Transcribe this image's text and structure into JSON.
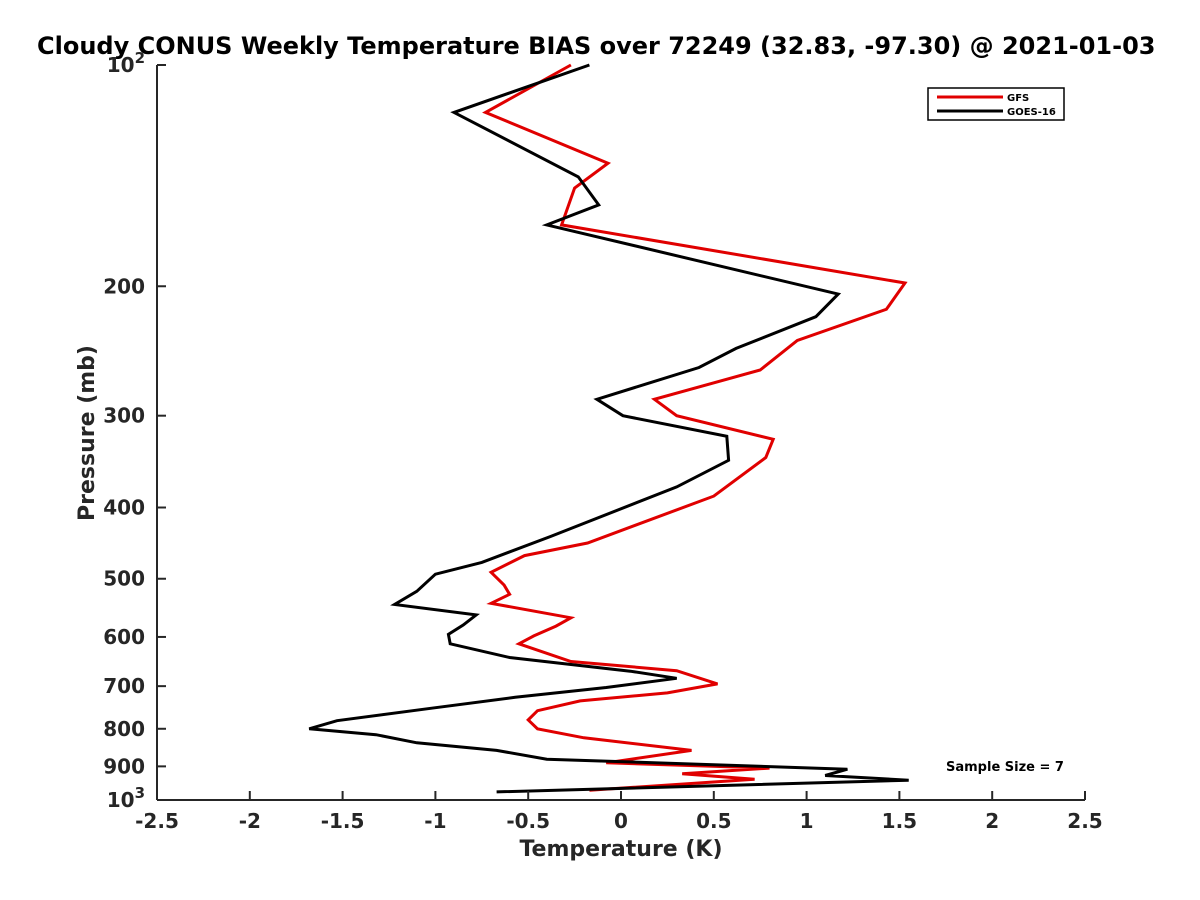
{
  "chart_data": {
    "type": "line",
    "title": "Cloudy CONUS Weekly Temperature BIAS over 72249 (32.83, -97.30) @ 2021-01-03",
    "xlabel": "Temperature (K)",
    "ylabel": "Pressure (mb)",
    "xlim": [
      -2.5,
      2.5
    ],
    "ylim": [
      100,
      1000
    ],
    "y_scale": "log",
    "y_reversed": true,
    "grid": false,
    "legend_position": "top-right",
    "x_ticks": [
      "-2.5",
      "-2",
      "-1.5",
      "-1",
      "-0.5",
      "0",
      "0.5",
      "1",
      "1.5",
      "2",
      "2.5"
    ],
    "y_ticks": [
      {
        "value": 100,
        "base": "10",
        "exp": "2"
      },
      {
        "value": 200,
        "label": "200"
      },
      {
        "value": 300,
        "label": "300"
      },
      {
        "value": 400,
        "label": "400"
      },
      {
        "value": 500,
        "label": "500"
      },
      {
        "value": 600,
        "label": "600"
      },
      {
        "value": 700,
        "label": "700"
      },
      {
        "value": 800,
        "label": "800"
      },
      {
        "value": 900,
        "label": "900"
      },
      {
        "value": 1000,
        "base": "10",
        "exp": "3"
      }
    ],
    "annotation": "Sample Size = 7",
    "series": [
      {
        "name": "GFS",
        "color": "#e00000",
        "points": [
          [
            -0.27,
            100
          ],
          [
            -0.73,
            116
          ],
          [
            -0.07,
            136
          ],
          [
            -0.25,
            147
          ],
          [
            -0.32,
            165
          ],
          [
            1.53,
            198
          ],
          [
            1.43,
            215
          ],
          [
            0.95,
            237
          ],
          [
            0.75,
            260
          ],
          [
            0.18,
            285
          ],
          [
            0.3,
            300
          ],
          [
            0.82,
            323
          ],
          [
            0.78,
            342
          ],
          [
            0.5,
            386
          ],
          [
            -0.18,
            447
          ],
          [
            -0.52,
            465
          ],
          [
            -0.7,
            490
          ],
          [
            -0.63,
            510
          ],
          [
            -0.6,
            525
          ],
          [
            -0.7,
            540
          ],
          [
            -0.27,
            565
          ],
          [
            -0.35,
            580
          ],
          [
            -0.47,
            598
          ],
          [
            -0.55,
            613
          ],
          [
            -0.27,
            648
          ],
          [
            0.3,
            667
          ],
          [
            0.52,
            695
          ],
          [
            0.25,
            715
          ],
          [
            -0.22,
            733
          ],
          [
            -0.45,
            756
          ],
          [
            -0.5,
            778
          ],
          [
            -0.45,
            800
          ],
          [
            -0.2,
            823
          ],
          [
            0.38,
            856
          ],
          [
            -0.08,
            890
          ],
          [
            0.8,
            905
          ],
          [
            0.33,
            921
          ],
          [
            0.72,
            937
          ],
          [
            -0.17,
            970
          ]
        ]
      },
      {
        "name": "GOES-16",
        "color": "#000000",
        "points": [
          [
            -0.17,
            100
          ],
          [
            -0.9,
            116
          ],
          [
            -0.23,
            142
          ],
          [
            -0.12,
            155
          ],
          [
            -0.4,
            165
          ],
          [
            1.17,
            205
          ],
          [
            1.05,
            220
          ],
          [
            0.62,
            243
          ],
          [
            0.42,
            258
          ],
          [
            -0.13,
            285
          ],
          [
            0.01,
            300
          ],
          [
            0.57,
            320
          ],
          [
            0.58,
            345
          ],
          [
            0.3,
            375
          ],
          [
            -0.38,
            438
          ],
          [
            -0.75,
            475
          ],
          [
            -1.0,
            493
          ],
          [
            -1.1,
            520
          ],
          [
            -1.22,
            542
          ],
          [
            -0.78,
            560
          ],
          [
            -0.85,
            578
          ],
          [
            -0.93,
            595
          ],
          [
            -0.92,
            613
          ],
          [
            -0.6,
            640
          ],
          [
            0.05,
            668
          ],
          [
            0.3,
            683
          ],
          [
            -0.08,
            703
          ],
          [
            -0.57,
            725
          ],
          [
            -1.02,
            750
          ],
          [
            -1.53,
            780
          ],
          [
            -1.68,
            800
          ],
          [
            -1.32,
            815
          ],
          [
            -1.1,
            836
          ],
          [
            -0.67,
            856
          ],
          [
            -0.4,
            880
          ],
          [
            1.22,
            908
          ],
          [
            1.1,
            926
          ],
          [
            1.55,
            940
          ],
          [
            -0.67,
            975
          ]
        ]
      }
    ]
  }
}
